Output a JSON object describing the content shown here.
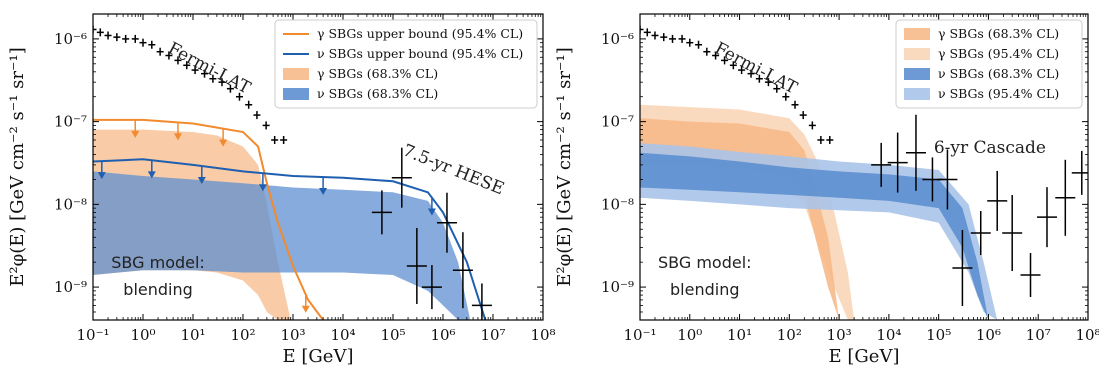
{
  "colors": {
    "gamma": "#f28a2e",
    "gamma_fill_68": "#f7b98a",
    "gamma_fill_95": "#fad6b8",
    "nu": "#1f5fb0",
    "nu_fill_68": "#5d8fd0",
    "nu_fill_95": "#a9c3e8",
    "data": "#000000"
  },
  "chart_data": [
    {
      "type": "line",
      "xlabel": "E [GeV]",
      "ylabel": "E²φ(E) [GeV cm⁻² s⁻¹ sr⁻¹]",
      "xscale": "log",
      "yscale": "log",
      "xlim": [
        0.1,
        100000000
      ],
      "ylim": [
        4e-10,
        2e-06
      ],
      "xticks": [
        "10⁻¹",
        "10⁰",
        "10¹",
        "10²",
        "10³",
        "10⁴",
        "10⁵",
        "10⁶",
        "10⁷",
        "10⁸"
      ],
      "yticks": [
        "10⁻⁹",
        "10⁻⁸",
        "10⁻⁷",
        "10⁻⁶"
      ],
      "legend_position": "top-right",
      "legend": [
        {
          "label": "γ SBGs upper bound (95.4% CL)",
          "style": "line",
          "color": "gamma"
        },
        {
          "label": "ν SBGs upper bound (95.4% CL)",
          "style": "line",
          "color": "nu"
        },
        {
          "label": "γ SBGs (68.3% CL)",
          "style": "band",
          "color": "gamma_fill_68"
        },
        {
          "label": "ν SBGs (68.3% CL)",
          "style": "band",
          "color": "nu_fill_68"
        }
      ],
      "annotations": {
        "fermi": "Fermi-LAT",
        "hese": "7.5-yr HESE",
        "model_line1": "SBG model:",
        "model_line2": "blending"
      },
      "series": [
        {
          "name": "γ SBGs upper bound (95.4% CL)",
          "kind": "line",
          "x": [
            0.1,
            1,
            10,
            100,
            200,
            300,
            500,
            1000,
            2000,
            4000
          ],
          "y": [
            1.05e-07,
            1.05e-07,
            9.5e-08,
            7.5e-08,
            5e-08,
            1.8e-08,
            6e-09,
            1.8e-09,
            7e-10,
            4e-10
          ]
        },
        {
          "name": "ν SBGs upper bound (95.4% CL)",
          "kind": "line",
          "x": [
            0.1,
            1,
            10,
            100,
            1000,
            10000,
            100000,
            500000,
            1000000,
            3000000,
            7000000
          ],
          "y": [
            3.3e-08,
            3.5e-08,
            3e-08,
            2.5e-08,
            2.2e-08,
            2.1e-08,
            1.9e-08,
            1.4e-08,
            8e-09,
            2e-09,
            4e-10
          ]
        },
        {
          "name": "γ SBGs (68.3% CL)",
          "kind": "band",
          "x": [
            0.1,
            1,
            10,
            30,
            100,
            200,
            300,
            500,
            900
          ],
          "low": [
            1.4e-09,
            1.6e-09,
            1.6e-09,
            1.5e-09,
            1.2e-09,
            8e-10,
            5e-10,
            4e-10,
            4e-10
          ],
          "high": [
            8e-08,
            8e-08,
            7.5e-08,
            6.8e-08,
            5e-08,
            3e-08,
            1e-08,
            2e-09,
            4e-10
          ]
        },
        {
          "name": "ν SBGs (68.3% CL)",
          "kind": "band",
          "x": [
            0.1,
            1,
            10,
            100,
            1000,
            10000,
            100000,
            500000,
            1000000,
            2000000,
            3500000
          ],
          "low": [
            1.4e-09,
            1.6e-09,
            1.6e-09,
            1.5e-09,
            1.5e-09,
            1.5e-09,
            1.4e-09,
            9e-10,
            6e-10,
            4e-10,
            4e-10
          ],
          "high": [
            2.5e-08,
            2.2e-08,
            2e-08,
            1.8e-08,
            1.6e-08,
            1.5e-08,
            1.4e-08,
            1.1e-08,
            6e-09,
            2e-09,
            4e-10
          ]
        },
        {
          "name": "Fermi-LAT",
          "kind": "points",
          "x": [
            0.1,
            0.14,
            0.2,
            0.3,
            0.45,
            0.7,
            1,
            1.5,
            2.2,
            3.3,
            5,
            7.5,
            11,
            17,
            25,
            38,
            56,
            85,
            130,
            190,
            290,
            430,
            650
          ],
          "y": [
            1.3e-06,
            1.2e-06,
            1.1e-06,
            1.05e-06,
            1e-06,
            1e-06,
            9e-07,
            8.5e-07,
            7e-07,
            6.3e-07,
            5.5e-07,
            4.8e-07,
            4.2e-07,
            3.8e-07,
            3.3e-07,
            3e-07,
            2.5e-07,
            2e-07,
            1.6e-07,
            1.2e-07,
            9e-08,
            6e-08,
            6e-08
          ]
        },
        {
          "name": "HESE",
          "kind": "points",
          "x": [
            60000,
            150000,
            300000,
            600000,
            1200000,
            2500000,
            6000000
          ],
          "y": [
            8e-09,
            2.1e-08,
            1.8e-09,
            1e-09,
            6e-09,
            1.6e-09,
            6e-10
          ]
        }
      ]
    },
    {
      "type": "line",
      "xlabel": "E [GeV]",
      "ylabel": "E²φ(E) [GeV cm⁻² s⁻¹ sr⁻¹]",
      "xscale": "log",
      "yscale": "log",
      "xlim": [
        0.1,
        100000000
      ],
      "ylim": [
        4e-10,
        2e-06
      ],
      "xticks": [
        "10⁻¹",
        "10⁰",
        "10¹",
        "10²",
        "10³",
        "10⁴",
        "10⁵",
        "10⁶",
        "10⁷",
        "10⁸"
      ],
      "yticks": [
        "10⁻⁹",
        "10⁻⁸",
        "10⁻⁷",
        "10⁻⁶"
      ],
      "legend_position": "top-right",
      "legend": [
        {
          "label": "γ SBGs (68.3% CL)",
          "style": "band",
          "color": "gamma_fill_68"
        },
        {
          "label": "γ SBGs (95.4% CL)",
          "style": "band",
          "color": "gamma_fill_95"
        },
        {
          "label": "ν SBGs (68.3% CL)",
          "style": "band",
          "color": "nu_fill_68"
        },
        {
          "label": "ν SBGs (95.4% CL)",
          "style": "band",
          "color": "nu_fill_95"
        }
      ],
      "annotations": {
        "fermi": "Fermi-LAT",
        "cascade": "6-yr Cascade",
        "model_line1": "SBG model:",
        "model_line2": "blending"
      },
      "series": [
        {
          "name": "γ SBGs (95.4% CL)",
          "kind": "band",
          "x": [
            0.1,
            1,
            10,
            100,
            200,
            400,
            800,
            1500,
            2000
          ],
          "low": [
            2e-08,
            2.1e-08,
            2e-08,
            1.6e-08,
            1e-08,
            3e-09,
            1e-09,
            4e-10,
            4e-10
          ],
          "high": [
            1.6e-07,
            1.5e-07,
            1.4e-07,
            1.1e-07,
            7e-08,
            3e-08,
            8e-09,
            1.5e-09,
            4e-10
          ]
        },
        {
          "name": "γ SBGs (68.3% CL)",
          "kind": "band",
          "x": [
            0.1,
            1,
            10,
            100,
            200,
            300,
            600,
            1000
          ],
          "low": [
            3e-08,
            3e-08,
            2.8e-08,
            2.2e-08,
            1.3e-08,
            5e-09,
            1e-09,
            4e-10
          ],
          "high": [
            1.1e-07,
            1e-07,
            9.5e-08,
            7.5e-08,
            4.5e-08,
            2e-08,
            4e-09,
            4e-10
          ]
        },
        {
          "name": "ν SBGs (95.4% CL)",
          "kind": "band",
          "x": [
            0.1,
            1,
            10,
            100,
            1000,
            10000,
            100000,
            400000,
            800000,
            1500000
          ],
          "low": [
            1.2e-08,
            1.1e-08,
            1e-08,
            9e-09,
            8.5e-09,
            8e-09,
            6e-09,
            1.5e-09,
            5e-10,
            4e-10
          ],
          "high": [
            5.5e-08,
            5e-08,
            4.3e-08,
            3.8e-08,
            3.3e-08,
            3e-08,
            2.6e-08,
            1e-08,
            2e-09,
            4e-10
          ]
        },
        {
          "name": "ν SBGs (68.3% CL)",
          "kind": "band",
          "x": [
            0.1,
            1,
            10,
            100,
            1000,
            10000,
            100000,
            300000,
            600000,
            1000000
          ],
          "low": [
            1.6e-08,
            1.5e-08,
            1.4e-08,
            1.3e-08,
            1.2e-08,
            1.1e-08,
            9e-09,
            3e-09,
            8e-10,
            4e-10
          ],
          "high": [
            4.2e-08,
            3.8e-08,
            3.3e-08,
            2.8e-08,
            2.5e-08,
            2.3e-08,
            2e-08,
            9e-09,
            2e-09,
            4e-10
          ]
        },
        {
          "name": "Fermi-LAT",
          "kind": "points",
          "x": [
            0.1,
            0.14,
            0.2,
            0.3,
            0.45,
            0.7,
            1,
            1.5,
            2.2,
            3.3,
            5,
            7.5,
            11,
            17,
            25,
            38,
            56,
            85,
            130,
            190,
            290,
            430,
            650
          ],
          "y": [
            1.3e-06,
            1.2e-06,
            1.1e-06,
            1.05e-06,
            1e-06,
            1e-06,
            9e-07,
            8.5e-07,
            7e-07,
            6.3e-07,
            5.5e-07,
            4.8e-07,
            4.2e-07,
            3.8e-07,
            3.3e-07,
            3e-07,
            2.5e-07,
            2e-07,
            1.6e-07,
            1.2e-07,
            9e-08,
            6e-08,
            6e-08
          ]
        },
        {
          "name": "Cascade",
          "kind": "points",
          "x": [
            7000,
            15000,
            35000,
            75000,
            150000,
            300000,
            700000,
            1500000,
            3000000,
            7000000,
            15000000,
            35000000,
            75000000
          ],
          "y": [
            3e-08,
            3.2e-08,
            4.2e-08,
            2e-08,
            2e-08,
            1.7e-09,
            4.5e-09,
            1.1e-08,
            4.5e-09,
            1.4e-09,
            7e-09,
            1.2e-08,
            2.4e-08
          ]
        }
      ]
    }
  ]
}
